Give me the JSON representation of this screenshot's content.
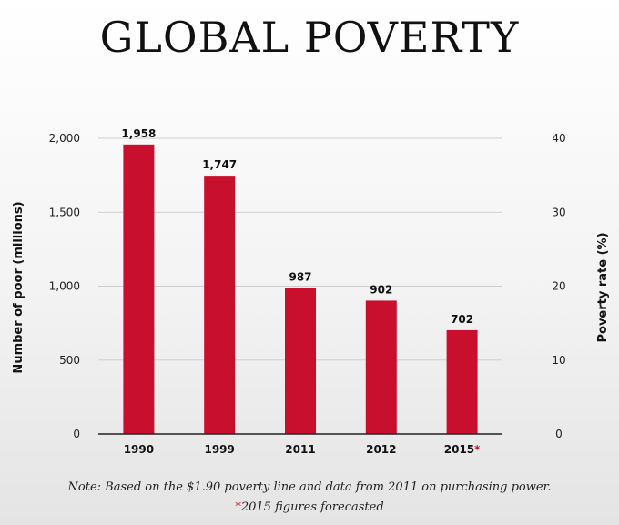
{
  "title": "GLOBAL POVERTY",
  "colors": {
    "bar": "#c8102e",
    "grid": "#cfcfcf",
    "axis": "#222222",
    "asterisk": "#c8102e"
  },
  "chart_data": {
    "type": "bar",
    "categories": [
      "1990",
      "1999",
      "2011",
      "2012",
      "2015"
    ],
    "category_marks": [
      "",
      "",
      "",
      "",
      "*"
    ],
    "values": [
      1958,
      1747,
      987,
      902,
      702
    ],
    "value_labels": [
      "1,958",
      "1,747",
      "987",
      "902",
      "702"
    ],
    "ylabel": "Number of poor (millions)",
    "ylim": [
      0,
      2000
    ],
    "yticks": [
      0,
      500,
      1000,
      1500,
      2000
    ],
    "ytick_labels": [
      "0",
      "500",
      "1,000",
      "1,500",
      "2,000"
    ],
    "y2label": "Poverty rate (%)",
    "y2lim": [
      0,
      40
    ],
    "y2ticks": [
      0,
      10,
      20,
      30,
      40
    ],
    "grid": true
  },
  "notes": {
    "line1": "Note: Based on the $1.90 poverty line and data from 2011 on purchasing power.",
    "star": "*",
    "line2": "2015 figures forecasted"
  }
}
